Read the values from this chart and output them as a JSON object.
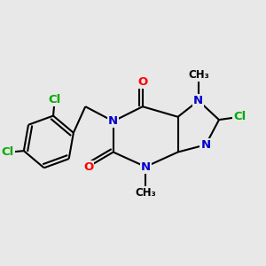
{
  "bg_color": "#e8e8e8",
  "atom_colors": {
    "N": "#0000cc",
    "O": "#ff0000",
    "Cl": "#00aa00"
  },
  "bond_color": "#000000",
  "lw": 1.5,
  "font_size": 9.5
}
